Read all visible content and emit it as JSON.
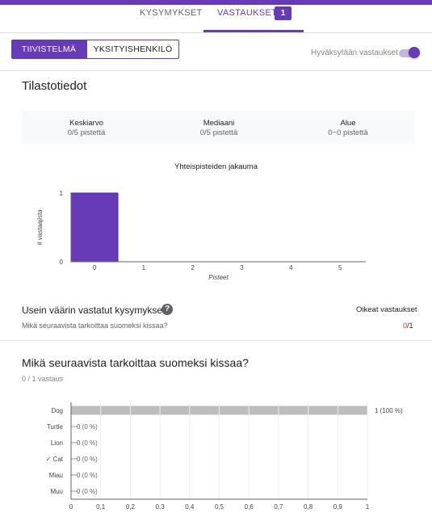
{
  "tabs": {
    "questions": "KYSYMYKSET",
    "responses": "VASTAUKSET",
    "responses_count": "1"
  },
  "view_toggle": {
    "summary": "TIIVISTELMÄ",
    "individual": "YKSITYISHENKILÖ"
  },
  "accepting": {
    "label": "Hyväksytään vastaukset",
    "on": true
  },
  "stats": {
    "title": "Tilastotiedot",
    "mean_label": "Keskiarvo",
    "mean_value": "0/5 pistettä",
    "median_label": "Mediaani",
    "median_value": "0/5 pistettä",
    "range_label": "Alue",
    "range_value": "0−0 pistettä"
  },
  "frequent": {
    "title": "Usein väärin vastatut kysymykset",
    "help_icon": "help-circle-icon",
    "correct_header": "Oikeat vastaukset",
    "question": "Mikä seuraavista tarkoittaa suomeksi kissaa?",
    "correct": "0",
    "total": "/1"
  },
  "question": {
    "title": "Mikä seuraavista tarkoittaa suomeksi kissaa?",
    "count": "0 / 1 vastaus"
  },
  "colors": {
    "accent": "#673ab7",
    "bar_gray": "#bdbdbd",
    "error": "#d93025"
  },
  "chart_data": [
    {
      "type": "bar",
      "title": "Yhteispisteiden jakauma",
      "xlabel": "Pisteet",
      "ylabel": "# vastaajista",
      "categories": [
        "0",
        "1",
        "2",
        "3",
        "4",
        "5"
      ],
      "values": [
        1,
        0,
        0,
        0,
        0,
        0
      ],
      "ylim": [
        0,
        1
      ],
      "yticks": [
        "0",
        "1"
      ]
    },
    {
      "type": "bar",
      "orientation": "horizontal",
      "categories": [
        "Dog",
        "Turtle",
        "Lion",
        "✓ Cat",
        "Miau",
        "Muu"
      ],
      "values": [
        1,
        0,
        0,
        0,
        0,
        0
      ],
      "data_labels": [
        "1 (100 %)",
        "0 (0 %)",
        "0 (0 %)",
        "0 (0 %)",
        "0 (0 %)",
        "0 (0 %)"
      ],
      "xlim": [
        0,
        1
      ],
      "xticks": [
        "0",
        "0,1",
        "0,2",
        "0,3",
        "0,4",
        "0,5",
        "0,6",
        "0,7",
        "0,8",
        "0,9",
        "1"
      ]
    }
  ]
}
